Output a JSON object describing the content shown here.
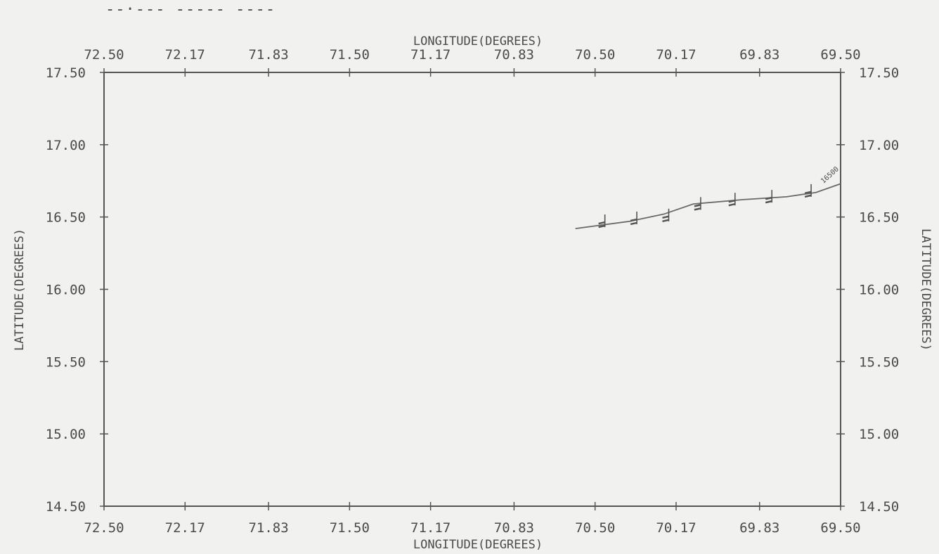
{
  "header_mark": "--·--- ----- ----",
  "chart_data": {
    "type": "line",
    "title": "",
    "xlabel": "LONGITUDE(DEGREES)",
    "ylabel": "LATITUDE(DEGREES)",
    "x_reversed": true,
    "xlim": [
      72.5,
      69.5
    ],
    "ylim": [
      14.5,
      17.5
    ],
    "x_ticks": [
      72.5,
      72.17,
      71.83,
      71.5,
      71.17,
      70.83,
      70.5,
      70.17,
      69.83,
      69.5
    ],
    "x_tick_labels": [
      "72.50",
      "72.17",
      "71.83",
      "71.50",
      "71.17",
      "70.83",
      "70.50",
      "70.17",
      "69.83",
      "69.50"
    ],
    "y_ticks": [
      17.5,
      17.0,
      16.5,
      16.0,
      15.5,
      15.0,
      14.5
    ],
    "y_tick_labels": [
      "17.50",
      "17.00",
      "16.50",
      "16.00",
      "15.50",
      "15.00",
      "14.50"
    ],
    "grid": false,
    "colors": {
      "line": "#6a6a6a",
      "axis": "#555555",
      "text": "#4a4a4a"
    },
    "series": [
      {
        "x": [
          70.58,
          70.36,
          70.22,
          70.1,
          69.9,
          69.72,
          69.6,
          69.5
        ],
        "y": [
          16.42,
          16.47,
          16.52,
          16.59,
          16.62,
          16.64,
          16.67,
          16.73
        ]
      }
    ],
    "wind_barbs": [
      {
        "x": 70.46,
        "y": 16.43
      },
      {
        "x": 70.33,
        "y": 16.45
      },
      {
        "x": 70.2,
        "y": 16.47
      },
      {
        "x": 70.07,
        "y": 16.55
      },
      {
        "x": 69.93,
        "y": 16.58
      },
      {
        "x": 69.78,
        "y": 16.6
      },
      {
        "x": 69.62,
        "y": 16.64
      }
    ],
    "annotations": [
      {
        "text": "16500",
        "x": 69.57,
        "y": 16.73
      }
    ]
  }
}
